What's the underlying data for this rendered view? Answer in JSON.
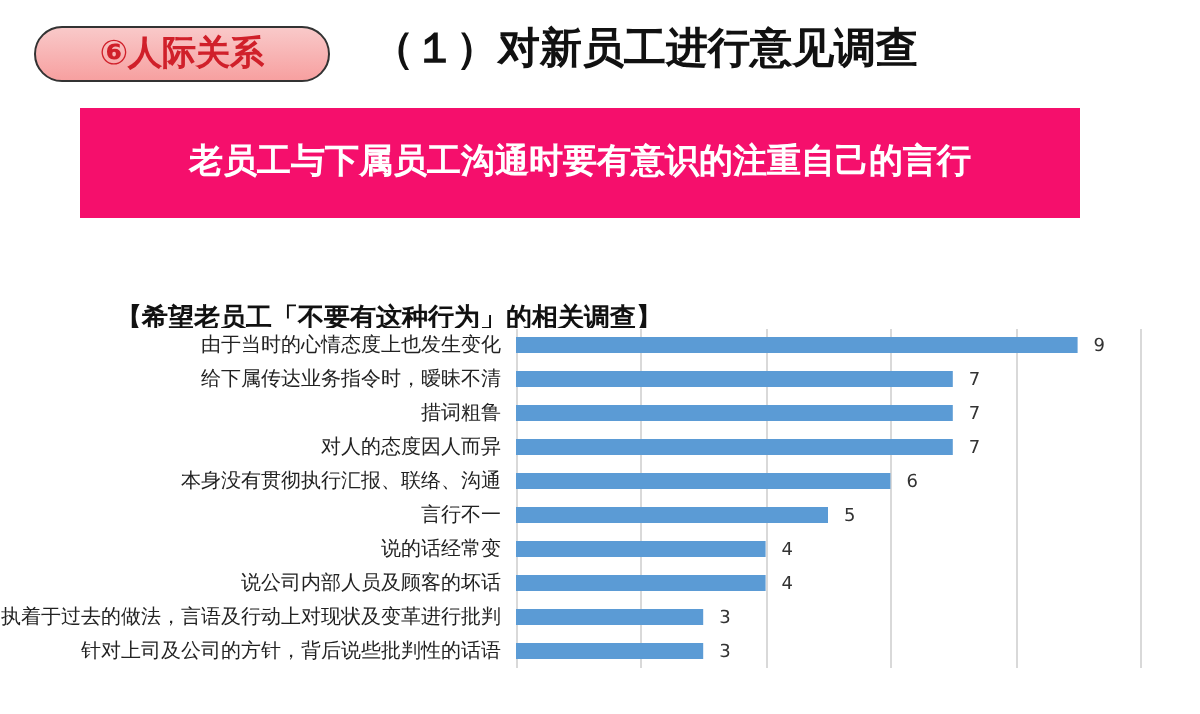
{
  "chart_data": {
    "type": "bar",
    "orientation": "horizontal",
    "title": "（１）对新员工进行意见调查",
    "subtitle": "老员工与下属员工沟通时要有意识的注重自己的言行",
    "annotations": [
      "⑥人际关系",
      "【希望老员工「不要有这种行为」的相关调查】"
    ],
    "categories": [
      "由于当时的心情态度上也发生变化",
      "给下属传达业务指令时，暧昧不清",
      "措词粗鲁",
      "对人的态度因人而异",
      "本身没有贯彻执行汇报、联络、沟通",
      "言行不一",
      "说的话经常变",
      "说公司内部人员及顾客的坏话",
      "执着于过去的做法，言语及行动上对现状及变革进行批判",
      "针对上司及公司的方针，背后说些批判性的话语"
    ],
    "values": [
      9,
      7,
      7,
      7,
      6,
      5,
      4,
      4,
      3,
      3
    ],
    "color": "#5b9bd5",
    "xlim": [
      0,
      10
    ],
    "xticks": [
      {
        "value": 0,
        "label": null
      },
      {
        "value": 2,
        "label": null
      },
      {
        "value": 4,
        "label": null
      },
      {
        "value": 6,
        "label": null
      },
      {
        "value": 8,
        "label": null
      },
      {
        "value": 10,
        "label": null
      }
    ],
    "grid": "x",
    "tick_labels": "y",
    "data_labels": true
  }
}
